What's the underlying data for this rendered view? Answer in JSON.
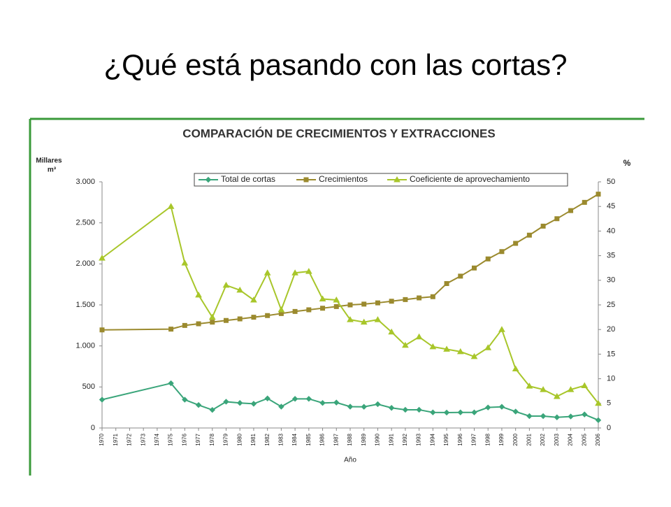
{
  "slide_title": "¿Qué está pasando con las cortas?",
  "chart_data": {
    "type": "line",
    "title": "COMPARACIÓN DE CRECIMIENTOS Y EXTRACCIONES",
    "ylabel": [
      "Millares",
      "m³"
    ],
    "y2label": "%",
    "xlabel": "Año",
    "x": [
      1970,
      1975,
      1976,
      1977,
      1978,
      1979,
      1980,
      1981,
      1982,
      1983,
      1984,
      1985,
      1986,
      1987,
      1988,
      1989,
      1990,
      1991,
      1992,
      1993,
      1994,
      1995,
      1996,
      1997,
      1998,
      1999,
      2000,
      2001,
      2002,
      2003,
      2004,
      2005,
      2006
    ],
    "xlim": [
      1970,
      2006
    ],
    "xticks": [
      1970,
      1971,
      1972,
      1973,
      1974,
      1975,
      1976,
      1977,
      1978,
      1979,
      1980,
      1981,
      1982,
      1983,
      1984,
      1985,
      1986,
      1987,
      1988,
      1989,
      1990,
      1991,
      1992,
      1993,
      1994,
      1995,
      1996,
      1997,
      1998,
      1999,
      2000,
      2001,
      2002,
      2003,
      2004,
      2005,
      2006
    ],
    "ylim": [
      0,
      3000
    ],
    "yticks": [
      0,
      500,
      {
        "value": 1000,
        "label": "1.000"
      },
      {
        "value": 1500,
        "label": "1.500"
      },
      {
        "value": 2000,
        "label": "2.000"
      },
      {
        "value": 2500,
        "label": "2.500"
      },
      {
        "value": 3000,
        "label": "3.000"
      }
    ],
    "y2lim": [
      0,
      50
    ],
    "y2ticks": [
      0,
      5,
      10,
      15,
      20,
      25,
      30,
      35,
      40,
      45,
      50
    ],
    "legend": "top",
    "series": [
      {
        "name": "Total de cortas",
        "color": "#3aa57a",
        "marker": "diamond",
        "values": [
          345,
          545,
          345,
          280,
          220,
          320,
          305,
          295,
          360,
          260,
          355,
          355,
          305,
          310,
          260,
          258,
          290,
          245,
          222,
          222,
          190,
          188,
          190,
          190,
          250,
          258,
          200,
          145,
          145,
          130,
          140,
          165,
          95
        ]
      },
      {
        "name": "Crecimientos",
        "color": "#9b8a2e",
        "marker": "square",
        "values": [
          1195,
          1205,
          1250,
          1270,
          1290,
          1310,
          1330,
          1350,
          1370,
          1395,
          1420,
          1440,
          1460,
          1480,
          1500,
          1510,
          1525,
          1545,
          1565,
          1585,
          1600,
          1760,
          1850,
          1950,
          2060,
          2150,
          2250,
          2350,
          2460,
          2550,
          2650,
          2750,
          2850
        ]
      },
      {
        "name": "Coeficiente de aprovechamiento",
        "color": "#a8c62a",
        "marker": "triangle",
        "axis": "y2",
        "values": [
          34.5,
          45,
          33.5,
          27,
          22.5,
          29,
          28,
          26,
          31.5,
          24,
          31.5,
          31.8,
          26.2,
          26,
          22,
          21.5,
          22,
          19.5,
          16.8,
          18.5,
          16.5,
          16,
          15.5,
          14.5,
          16.3,
          20,
          12,
          8.5,
          7.8,
          6.4,
          7.8,
          8.6,
          5
        ]
      }
    ]
  }
}
